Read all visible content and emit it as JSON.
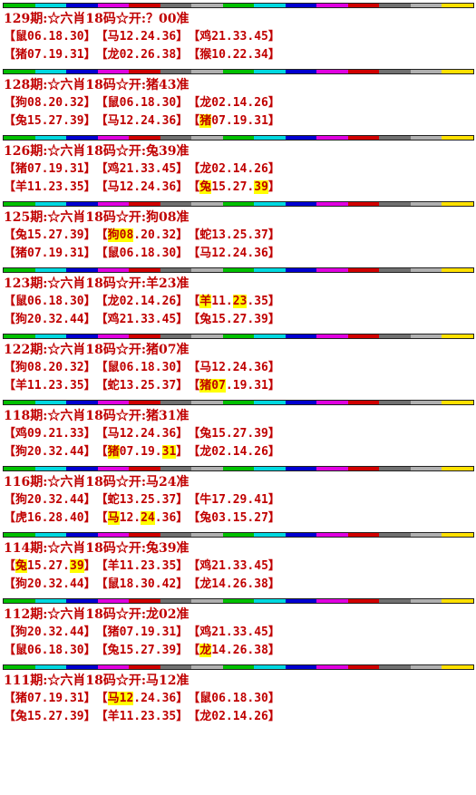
{
  "stripe_colors": [
    "#00c000",
    "#00d8e0",
    "#0000d0",
    "#e000e0",
    "#d00000",
    "#707070",
    "#b0b0b0",
    "#00c000",
    "#00d8e0",
    "#0000d0",
    "#e000e0",
    "#d00000",
    "#707070",
    "#b0b0b0",
    "#ffe000"
  ],
  "highlight_color": "#ffff00",
  "text_color": "#c00000",
  "entries": [
    {
      "header": "129期:☆六肖18码☆开:？00准",
      "rows": [
        [
          [
            {
              "t": "【鼠06.18.30】"
            }
          ],
          [
            {
              "t": "【马12.24.36】"
            }
          ],
          [
            {
              "t": "【鸡21.33.45】"
            }
          ]
        ],
        [
          [
            {
              "t": "【猪07.19.31】"
            }
          ],
          [
            {
              "t": "【龙02.26.38】"
            }
          ],
          [
            {
              "t": "【猴10.22.34】"
            }
          ]
        ]
      ]
    },
    {
      "header": "128期:☆六肖18码☆开:猪43准",
      "rows": [
        [
          [
            {
              "t": "【狗08.20.32】"
            }
          ],
          [
            {
              "t": "【鼠06.18.30】"
            }
          ],
          [
            {
              "t": "【龙02.14.26】"
            }
          ]
        ],
        [
          [
            {
              "t": "【兔15.27.39】"
            }
          ],
          [
            {
              "t": "【马12.24.36】"
            }
          ],
          [
            {
              "t": "【"
            },
            {
              "t": "猪",
              "h": true
            },
            {
              "t": "07.19.31】"
            }
          ]
        ]
      ]
    },
    {
      "header": "126期:☆六肖18码☆开:兔39准",
      "rows": [
        [
          [
            {
              "t": "【猪07.19.31】"
            }
          ],
          [
            {
              "t": "【鸡21.33.45】"
            }
          ],
          [
            {
              "t": "【龙02.14.26】"
            }
          ]
        ],
        [
          [
            {
              "t": "【羊11.23.35】"
            }
          ],
          [
            {
              "t": "【马12.24.36】"
            }
          ],
          [
            {
              "t": "【"
            },
            {
              "t": "兔",
              "h": true
            },
            {
              "t": "15.27."
            },
            {
              "t": "39",
              "h": true
            },
            {
              "t": "】"
            }
          ]
        ]
      ]
    },
    {
      "header": "125期:☆六肖18码☆开:狗08准",
      "rows": [
        [
          [
            {
              "t": "【兔15.27.39】"
            }
          ],
          [
            {
              "t": "【"
            },
            {
              "t": "狗08",
              "h": true
            },
            {
              "t": ".20.32】"
            }
          ],
          [
            {
              "t": "【蛇13.25.37】"
            }
          ]
        ],
        [
          [
            {
              "t": "【猪07.19.31】"
            }
          ],
          [
            {
              "t": "【鼠06.18.30】"
            }
          ],
          [
            {
              "t": "【马12.24.36】"
            }
          ]
        ]
      ]
    },
    {
      "header": "123期:☆六肖18码☆开:羊23准",
      "rows": [
        [
          [
            {
              "t": "【鼠06.18.30】"
            }
          ],
          [
            {
              "t": "【龙02.14.26】"
            }
          ],
          [
            {
              "t": "【"
            },
            {
              "t": "羊",
              "h": true
            },
            {
              "t": "11."
            },
            {
              "t": "23",
              "h": true
            },
            {
              "t": ".35】"
            }
          ]
        ],
        [
          [
            {
              "t": "【狗20.32.44】"
            }
          ],
          [
            {
              "t": "【鸡21.33.45】"
            }
          ],
          [
            {
              "t": "【兔15.27.39】"
            }
          ]
        ]
      ]
    },
    {
      "header": "122期:☆六肖18码☆开:猪07准",
      "rows": [
        [
          [
            {
              "t": "【狗08.20.32】"
            }
          ],
          [
            {
              "t": "【鼠06.18.30】"
            }
          ],
          [
            {
              "t": "【马12.24.36】"
            }
          ]
        ],
        [
          [
            {
              "t": "【羊11.23.35】"
            }
          ],
          [
            {
              "t": "【蛇13.25.37】"
            }
          ],
          [
            {
              "t": "【"
            },
            {
              "t": "猪07",
              "h": true
            },
            {
              "t": ".19.31】"
            }
          ]
        ]
      ]
    },
    {
      "header": "118期:☆六肖18码☆开:猪31准",
      "rows": [
        [
          [
            {
              "t": "【鸡09.21.33】"
            }
          ],
          [
            {
              "t": "【马12.24.36】"
            }
          ],
          [
            {
              "t": "【兔15.27.39】"
            }
          ]
        ],
        [
          [
            {
              "t": "【狗20.32.44】"
            }
          ],
          [
            {
              "t": "【"
            },
            {
              "t": "猪",
              "h": true
            },
            {
              "t": "07.19."
            },
            {
              "t": "31",
              "h": true
            },
            {
              "t": "】"
            }
          ],
          [
            {
              "t": "【龙02.14.26】"
            }
          ]
        ]
      ]
    },
    {
      "header": "116期:☆六肖18码☆开:马24准",
      "rows": [
        [
          [
            {
              "t": "【狗20.32.44】"
            }
          ],
          [
            {
              "t": "【蛇13.25.37】"
            }
          ],
          [
            {
              "t": "【牛17.29.41】"
            }
          ]
        ],
        [
          [
            {
              "t": "【虎16.28.40】"
            }
          ],
          [
            {
              "t": "【"
            },
            {
              "t": "马",
              "h": true
            },
            {
              "t": "12."
            },
            {
              "t": "24",
              "h": true
            },
            {
              "t": ".36】"
            }
          ],
          [
            {
              "t": "【兔03.15.27】"
            }
          ]
        ]
      ]
    },
    {
      "header": "114期:☆六肖18码☆开:兔39准",
      "rows": [
        [
          [
            {
              "t": "【"
            },
            {
              "t": "兔",
              "h": true
            },
            {
              "t": "15.27."
            },
            {
              "t": "39",
              "h": true
            },
            {
              "t": "】"
            }
          ],
          [
            {
              "t": "【羊11.23.35】"
            }
          ],
          [
            {
              "t": "【鸡21.33.45】"
            }
          ]
        ],
        [
          [
            {
              "t": "【狗20.32.44】"
            }
          ],
          [
            {
              "t": "【鼠18.30.42】"
            }
          ],
          [
            {
              "t": "【龙14.26.38】"
            }
          ]
        ]
      ]
    },
    {
      "header": "112期:☆六肖18码☆开:龙02准",
      "rows": [
        [
          [
            {
              "t": "【狗20.32.44】"
            }
          ],
          [
            {
              "t": "【猪07.19.31】"
            }
          ],
          [
            {
              "t": "【鸡21.33.45】"
            }
          ]
        ],
        [
          [
            {
              "t": "【鼠06.18.30】"
            }
          ],
          [
            {
              "t": "【兔15.27.39】"
            }
          ],
          [
            {
              "t": "【"
            },
            {
              "t": "龙",
              "h": true
            },
            {
              "t": "14.26.38】"
            }
          ]
        ]
      ]
    },
    {
      "header": "111期:☆六肖18码☆开:马12准",
      "rows": [
        [
          [
            {
              "t": "【猪07.19.31】"
            }
          ],
          [
            {
              "t": "【"
            },
            {
              "t": "马12",
              "h": true
            },
            {
              "t": ".24.36】"
            }
          ],
          [
            {
              "t": "【鼠06.18.30】"
            }
          ]
        ],
        [
          [
            {
              "t": "【兔15.27.39】"
            }
          ],
          [
            {
              "t": "【羊11.23.35】"
            }
          ],
          [
            {
              "t": "【龙02.14.26】"
            }
          ]
        ]
      ]
    }
  ]
}
